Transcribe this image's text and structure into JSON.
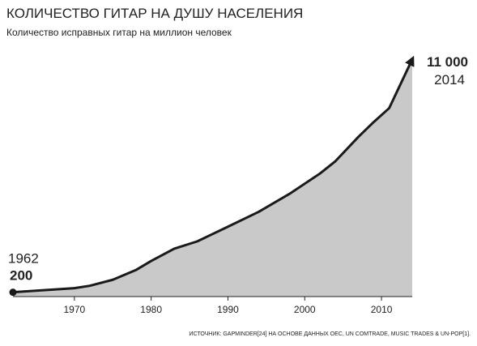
{
  "chart_data": {
    "type": "area",
    "title": "КОЛИЧЕСТВО ГИТАР НА ДУШУ НАСЕЛЕНИЯ",
    "subtitle": "Количество исправных гитар на миллион человек",
    "source": "ИСТОЧНИК: GAPMINDER[24] НА ОСНОВЕ ДАННЫХ OEC, UN COMTRADE, MUSIC TRADES & UN-POP[1].",
    "x": [
      1962,
      1970,
      1972,
      1975,
      1978,
      1980,
      1983,
      1986,
      1990,
      1994,
      1998,
      2002,
      2004,
      2007,
      2009,
      2011,
      2014
    ],
    "values": [
      200,
      390,
      500,
      780,
      1230,
      1650,
      2220,
      2560,
      3240,
      3930,
      4760,
      5710,
      6280,
      7410,
      8100,
      8740,
      11000
    ],
    "value_labels": [
      "200",
      null,
      null,
      null,
      null,
      null,
      null,
      null,
      null,
      null,
      null,
      null,
      null,
      null,
      null,
      null,
      "11 000"
    ],
    "color": "#c9c9c9",
    "line_color": "#1a1a1a",
    "xlim": [
      1962,
      2014
    ],
    "xticks": [
      1970,
      1980,
      1990,
      2000,
      2010
    ],
    "ylim": [
      0,
      11500
    ]
  }
}
